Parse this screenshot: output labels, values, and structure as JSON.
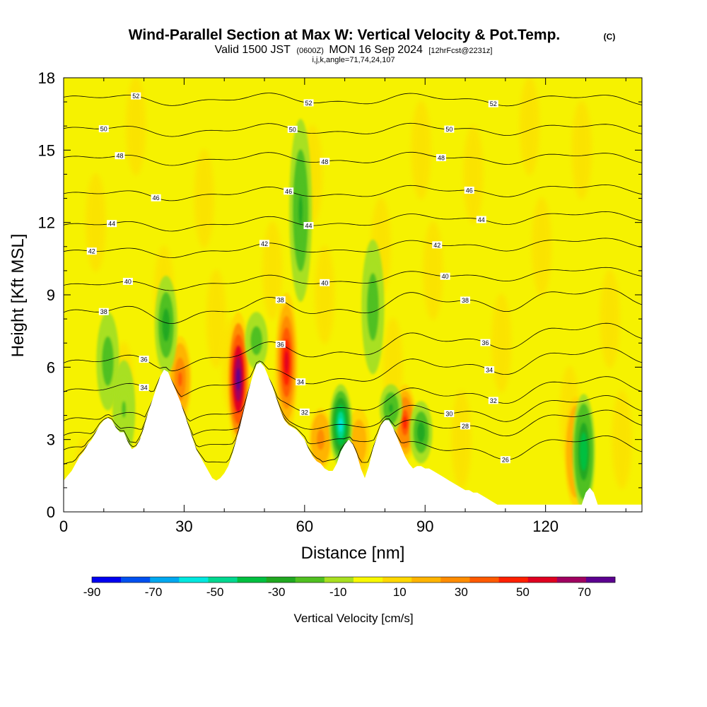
{
  "chart_data": {
    "type": "heatmap",
    "title": "Wind-Parallel Section at Max W: Vertical Velocity & Pot.Temp.",
    "title_mark": "(C)",
    "subtitle_left": "Valid 1500 JST",
    "subtitle_small1": "(0600Z)",
    "subtitle_mid": "MON 16 Sep 2024",
    "subtitle_small2": "[12hrFcst@2231z]",
    "subtitle2": "i,j,k,angle=71,74,24,107",
    "xlabel": "Distance [nm]",
    "ylabel": "Height [Kft MSL]",
    "xlim": [
      0,
      144
    ],
    "ylim": [
      0,
      18
    ],
    "x_ticks": [
      "0",
      "30",
      "60",
      "90",
      "120"
    ],
    "y_ticks": [
      "0",
      "3",
      "6",
      "9",
      "12",
      "15",
      "18"
    ],
    "colorbar": {
      "title": "Vertical Velocity [cm/s]",
      "range": [
        -90,
        80
      ],
      "tick_labels": [
        "-90",
        "-70",
        "-50",
        "-30",
        "-10",
        "10",
        "30",
        "50",
        "70"
      ],
      "colors": [
        "#0000f0",
        "#0050f0",
        "#00a8f0",
        "#00e8e0",
        "#00d890",
        "#00c040",
        "#20a820",
        "#50c020",
        "#a8e020",
        "#f8f800",
        "#ffd800",
        "#ffb400",
        "#ff8c00",
        "#ff5a00",
        "#ff2000",
        "#e00020",
        "#a00060",
        "#5c0090"
      ]
    },
    "terrain": [
      [
        0,
        1.3
      ],
      [
        1,
        1.5
      ],
      [
        2,
        1.7
      ],
      [
        3,
        2.0
      ],
      [
        4,
        2.3
      ],
      [
        5,
        2.5
      ],
      [
        6,
        2.8
      ],
      [
        7,
        3.0
      ],
      [
        8,
        3.3
      ],
      [
        9,
        3.6
      ],
      [
        10,
        3.8
      ],
      [
        11,
        3.9
      ],
      [
        12,
        3.8
      ],
      [
        13,
        3.5
      ],
      [
        14,
        3.3
      ],
      [
        15,
        3.3
      ],
      [
        16,
        2.9
      ],
      [
        17,
        2.6
      ],
      [
        18,
        2.7
      ],
      [
        19,
        3.0
      ],
      [
        20,
        3.5
      ],
      [
        21,
        4.1
      ],
      [
        22,
        4.6
      ],
      [
        23,
        5.1
      ],
      [
        24,
        5.6
      ],
      [
        25,
        5.9
      ],
      [
        26,
        5.8
      ],
      [
        27,
        5.4
      ],
      [
        28,
        5.0
      ],
      [
        29,
        4.6
      ],
      [
        30,
        4.1
      ],
      [
        31,
        3.6
      ],
      [
        32,
        3.1
      ],
      [
        33,
        2.6
      ],
      [
        34,
        2.3
      ],
      [
        35,
        2.0
      ],
      [
        36,
        1.7
      ],
      [
        37,
        1.4
      ],
      [
        38,
        1.3
      ],
      [
        39,
        1.4
      ],
      [
        40,
        1.6
      ],
      [
        41,
        1.9
      ],
      [
        42,
        2.4
      ],
      [
        43,
        3.0
      ],
      [
        44,
        3.6
      ],
      [
        45,
        4.3
      ],
      [
        46,
        5.0
      ],
      [
        47,
        5.6
      ],
      [
        48,
        6.1
      ],
      [
        49,
        6.2
      ],
      [
        50,
        6.0
      ],
      [
        51,
        5.6
      ],
      [
        52,
        5.2
      ],
      [
        53,
        4.7
      ],
      [
        54,
        4.2
      ],
      [
        55,
        3.8
      ],
      [
        56,
        3.6
      ],
      [
        57,
        3.5
      ],
      [
        58,
        3.4
      ],
      [
        59,
        3.2
      ],
      [
        60,
        3.0
      ],
      [
        61,
        2.6
      ],
      [
        62,
        2.3
      ],
      [
        63,
        2.1
      ],
      [
        64,
        2.0
      ],
      [
        65,
        1.8
      ],
      [
        66,
        1.7
      ],
      [
        67,
        1.7
      ],
      [
        68,
        2.0
      ],
      [
        69,
        2.5
      ],
      [
        70,
        2.8
      ],
      [
        71,
        3.0
      ],
      [
        72,
        2.8
      ],
      [
        73,
        2.4
      ],
      [
        74,
        1.8
      ],
      [
        75,
        1.4
      ],
      [
        76,
        1.9
      ],
      [
        77,
        2.6
      ],
      [
        78,
        3.1
      ],
      [
        79,
        3.6
      ],
      [
        80,
        3.8
      ],
      [
        81,
        3.8
      ],
      [
        82,
        3.5
      ],
      [
        83,
        3.1
      ],
      [
        84,
        2.7
      ],
      [
        85,
        2.3
      ],
      [
        86,
        2.0
      ],
      [
        87,
        1.8
      ],
      [
        88,
        1.9
      ],
      [
        89,
        1.9
      ],
      [
        90,
        1.8
      ],
      [
        91,
        1.8
      ],
      [
        92,
        1.7
      ],
      [
        93,
        1.6
      ],
      [
        94,
        1.5
      ],
      [
        95,
        1.4
      ],
      [
        96,
        1.3
      ],
      [
        97,
        1.2
      ],
      [
        98,
        1.1
      ],
      [
        99,
        1.0
      ],
      [
        100,
        0.9
      ],
      [
        101,
        0.9
      ],
      [
        102,
        0.8
      ],
      [
        103,
        0.8
      ],
      [
        104,
        0.7
      ],
      [
        105,
        0.6
      ],
      [
        106,
        0.5
      ],
      [
        107,
        0.4
      ],
      [
        108,
        0.3
      ],
      [
        110,
        0.3
      ],
      [
        115,
        0.3
      ],
      [
        120,
        0.3
      ],
      [
        125,
        0.3
      ],
      [
        128,
        0.3
      ],
      [
        129,
        0.3
      ],
      [
        130,
        0.8
      ],
      [
        131,
        1.0
      ],
      [
        132,
        0.8
      ],
      [
        133,
        0.3
      ],
      [
        136,
        0.3
      ],
      [
        140,
        0.3
      ],
      [
        144,
        0.3
      ]
    ],
    "updrafts": [
      {
        "x": 43.5,
        "zmin": 3.0,
        "zmax": 8.0,
        "peak": 80
      },
      {
        "x": 55.5,
        "zmin": 3.6,
        "zmax": 8.8,
        "peak": 55
      },
      {
        "x": 85.0,
        "zmin": 2.4,
        "zmax": 5.0,
        "peak": 45
      },
      {
        "x": 29.0,
        "zmin": 4.0,
        "zmax": 7.0,
        "peak": 35
      },
      {
        "x": 64.0,
        "zmin": 2.0,
        "zmax": 4.0,
        "peak": 30
      },
      {
        "x": 127.5,
        "zmin": 0.5,
        "zmax": 4.5,
        "peak": 30
      },
      {
        "x": 73.5,
        "zmin": 1.8,
        "zmax": 4.0,
        "peak": 20
      }
    ],
    "downdrafts": [
      {
        "x": 69.0,
        "zmin": 2.2,
        "zmax": 5.0,
        "peak": -60
      },
      {
        "x": 25.5,
        "zmin": 6.0,
        "zmax": 9.5,
        "peak": -30
      },
      {
        "x": 59.0,
        "zmin": 9.0,
        "zmax": 16.0,
        "peak": -25
      },
      {
        "x": 129.5,
        "zmin": 0.4,
        "zmax": 4.6,
        "peak": -40
      },
      {
        "x": 89.0,
        "zmin": 2.3,
        "zmax": 4.3,
        "peak": -30
      },
      {
        "x": 11.0,
        "zmin": 4.5,
        "zmax": 8.0,
        "peak": -20
      },
      {
        "x": 77.0,
        "zmin": 6.0,
        "zmax": 11.0,
        "peak": -20
      },
      {
        "x": 81.5,
        "zmin": 3.6,
        "zmax": 5.0,
        "peak": -25
      },
      {
        "x": 48.0,
        "zmin": 6.2,
        "zmax": 8.0,
        "peak": -20
      },
      {
        "x": 15.0,
        "zmin": 2.5,
        "zmax": 6.0,
        "peak": -15
      }
    ],
    "isentropes": [
      {
        "theta": 26,
        "z_left": 1.8,
        "z_right": 2.9,
        "label": "26",
        "label_x": 110
      },
      {
        "theta": 28,
        "z_left": 2.4,
        "z_right": 4.0,
        "label": "28",
        "label_x": 100
      },
      {
        "theta": 30,
        "z_left": 3.0,
        "z_right": 4.6,
        "label": "30",
        "label_x": 96
      },
      {
        "theta": 32,
        "z_left": 3.6,
        "z_right": 5.4,
        "label": "32",
        "label_x": 60,
        "label2_x": 107
      },
      {
        "theta": 34,
        "z_left": 4.8,
        "z_right": 6.6,
        "label": "34",
        "label_x": 20,
        "label2_x": 59,
        "label3_x": 106
      },
      {
        "theta": 36,
        "z_left": 6.0,
        "z_right": 7.6,
        "label": "36",
        "label_x": 20,
        "label2_x": 54,
        "label3_x": 105
      },
      {
        "theta": 38,
        "z_left": 8.1,
        "z_right": 9.0,
        "label": "38",
        "label_x": 10,
        "label2_x": 54,
        "label3_x": 100
      },
      {
        "theta": 40,
        "z_left": 9.3,
        "z_right": 10.0,
        "label": "40",
        "label_x": 16,
        "label2_x": 65,
        "label3_x": 95
      },
      {
        "theta": 42,
        "z_left": 10.7,
        "z_right": 11.2,
        "label": "42",
        "label_x": 7,
        "label2_x": 50,
        "label3_x": 93
      },
      {
        "theta": 44,
        "z_left": 11.8,
        "z_right": 12.3,
        "label": "44",
        "label_x": 12,
        "label2_x": 61,
        "label3_x": 104
      },
      {
        "theta": 46,
        "z_left": 13.1,
        "z_right": 13.4,
        "label": "46",
        "label_x": 23,
        "label2_x": 56,
        "label3_x": 101
      },
      {
        "theta": 48,
        "z_left": 14.6,
        "z_right": 14.7,
        "label": "48",
        "label_x": 14,
        "label2_x": 65,
        "label3_x": 94
      },
      {
        "theta": 50,
        "z_left": 15.8,
        "z_right": 15.9,
        "label": "50",
        "label_x": 10,
        "label2_x": 57,
        "label3_x": 96
      },
      {
        "theta": 52,
        "z_left": 17.1,
        "z_right": 17.1,
        "label": "52",
        "label_x": 18,
        "label2_x": 61,
        "label3_x": 107
      }
    ]
  }
}
